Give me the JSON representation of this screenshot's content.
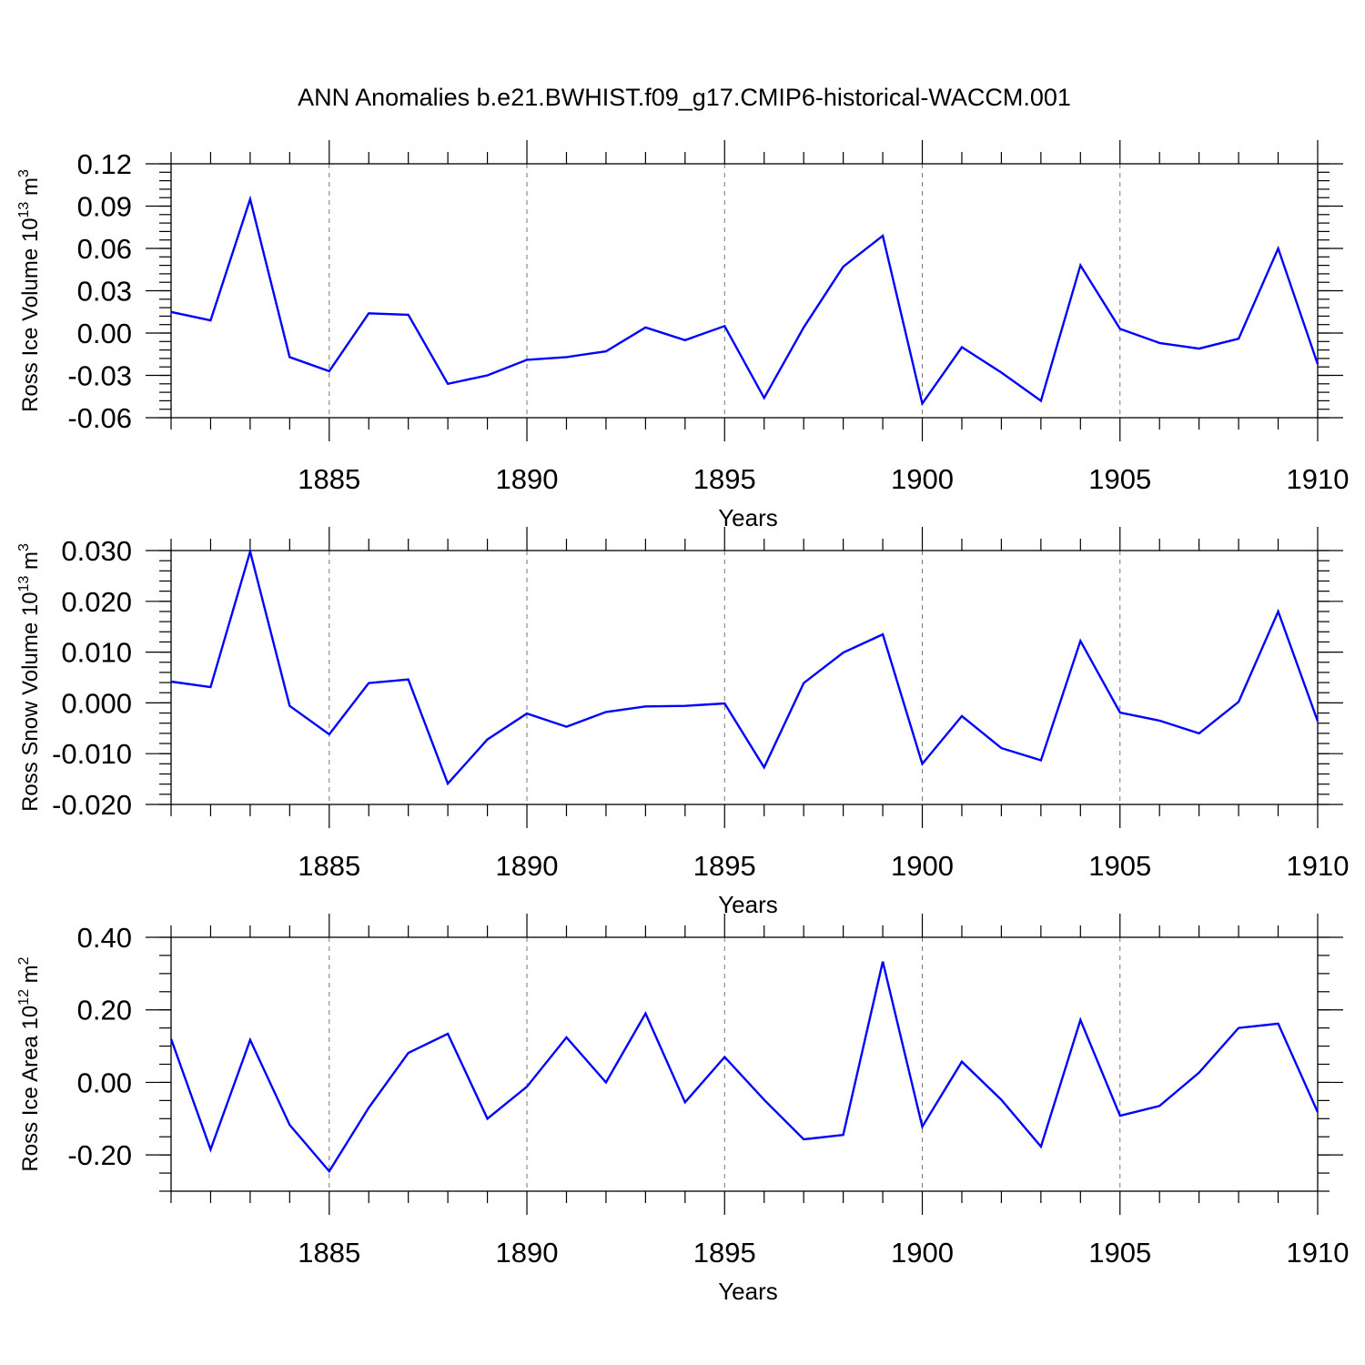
{
  "title": "ANN Anomalies b.e21.BWHIST.f09_g17.CMIP6-historical-WACCM.001",
  "colors": {
    "series": "#0000ff",
    "axis": "#000000",
    "grid": "#777777"
  },
  "chart_data": [
    {
      "type": "line",
      "ylabel": {
        "prefix": "Ross Ice Volume 10",
        "sup1": "13",
        "middle": " m",
        "sup2": "3"
      },
      "xlabel": "Years",
      "xlim": [
        1881,
        1910
      ],
      "ylim": [
        -0.06,
        0.12
      ],
      "xticks": [
        1885,
        1890,
        1895,
        1900,
        1905,
        1910
      ],
      "yticks": [
        -0.06,
        -0.03,
        0.0,
        0.03,
        0.06,
        0.09,
        0.12
      ],
      "ytick_labels": [
        "-0.06",
        "-0.03",
        "0.00",
        "0.03",
        "0.06",
        "0.09",
        "0.12"
      ],
      "yminor_step": 0.006,
      "grid": "dashed vertical at major x ticks",
      "x": [
        1881,
        1882,
        1883,
        1884,
        1885,
        1886,
        1887,
        1888,
        1889,
        1890,
        1891,
        1892,
        1893,
        1894,
        1895,
        1896,
        1897,
        1898,
        1899,
        1900,
        1901,
        1902,
        1903,
        1904,
        1905,
        1906,
        1907,
        1908,
        1909,
        1910
      ],
      "series": [
        {
          "values": [
            0.015,
            0.009,
            0.095,
            -0.017,
            -0.027,
            0.014,
            0.013,
            -0.036,
            -0.03,
            -0.019,
            -0.017,
            -0.013,
            0.004,
            -0.005,
            0.005,
            -0.046,
            0.004,
            0.047,
            0.069,
            -0.05,
            -0.01,
            -0.028,
            -0.048,
            0.048,
            0.003,
            -0.007,
            -0.011,
            -0.004,
            0.06,
            -0.022
          ]
        }
      ]
    },
    {
      "type": "line",
      "ylabel": {
        "prefix": "Ross Snow Volume 10",
        "sup1": "13",
        "middle": " m",
        "sup2": "3"
      },
      "xlabel": "Years",
      "xlim": [
        1881,
        1910
      ],
      "ylim": [
        -0.02,
        0.03
      ],
      "xticks": [
        1885,
        1890,
        1895,
        1900,
        1905,
        1910
      ],
      "yticks": [
        -0.02,
        -0.01,
        0.0,
        0.01,
        0.02,
        0.03
      ],
      "ytick_labels": [
        "-0.020",
        "-0.010",
        "0.000",
        "0.010",
        "0.020",
        "0.030"
      ],
      "yminor_step": 0.002,
      "grid": "dashed vertical at major x ticks",
      "x": [
        1881,
        1882,
        1883,
        1884,
        1885,
        1886,
        1887,
        1888,
        1889,
        1890,
        1891,
        1892,
        1893,
        1894,
        1895,
        1896,
        1897,
        1898,
        1899,
        1900,
        1901,
        1902,
        1903,
        1904,
        1905,
        1906,
        1907,
        1908,
        1909,
        1910
      ],
      "series": [
        {
          "values": [
            0.0042,
            0.0031,
            0.0298,
            -0.0006,
            -0.0062,
            0.0039,
            0.0046,
            -0.0159,
            -0.0072,
            -0.0021,
            -0.0047,
            -0.0018,
            -0.0007,
            -0.0006,
            -0.0001,
            -0.0127,
            0.0039,
            0.0099,
            0.0135,
            -0.012,
            -0.0026,
            -0.0089,
            -0.0113,
            0.0122,
            -0.0019,
            -0.0035,
            -0.006,
            0.0002,
            0.018,
            -0.0036
          ]
        }
      ]
    },
    {
      "type": "line",
      "ylabel": {
        "prefix": "Ross Ice Area 10",
        "sup1": "12",
        "middle": " m",
        "sup2": "2"
      },
      "xlabel": "Years",
      "xlim": [
        1881,
        1910
      ],
      "ylim": [
        -0.3,
        0.4
      ],
      "xticks": [
        1885,
        1890,
        1895,
        1900,
        1905,
        1910
      ],
      "yticks": [
        -0.2,
        0.0,
        0.2,
        0.4
      ],
      "ytick_labels": [
        "-0.20",
        "0.00",
        "0.20",
        "0.40"
      ],
      "yminor_step": 0.05,
      "grid": "dashed vertical at major x ticks",
      "x": [
        1881,
        1882,
        1883,
        1884,
        1885,
        1886,
        1887,
        1888,
        1889,
        1890,
        1891,
        1892,
        1893,
        1894,
        1895,
        1896,
        1897,
        1898,
        1899,
        1900,
        1901,
        1902,
        1903,
        1904,
        1905,
        1906,
        1907,
        1908,
        1909,
        1910
      ],
      "series": [
        {
          "values": [
            0.12,
            -0.185,
            0.117,
            -0.117,
            -0.245,
            -0.07,
            0.081,
            0.134,
            -0.1,
            -0.012,
            0.124,
            0.0,
            0.19,
            -0.055,
            0.07,
            -0.048,
            -0.157,
            -0.145,
            0.333,
            -0.122,
            0.057,
            -0.048,
            -0.177,
            0.172,
            -0.092,
            -0.065,
            0.027,
            0.15,
            0.162,
            -0.082
          ]
        }
      ]
    }
  ]
}
